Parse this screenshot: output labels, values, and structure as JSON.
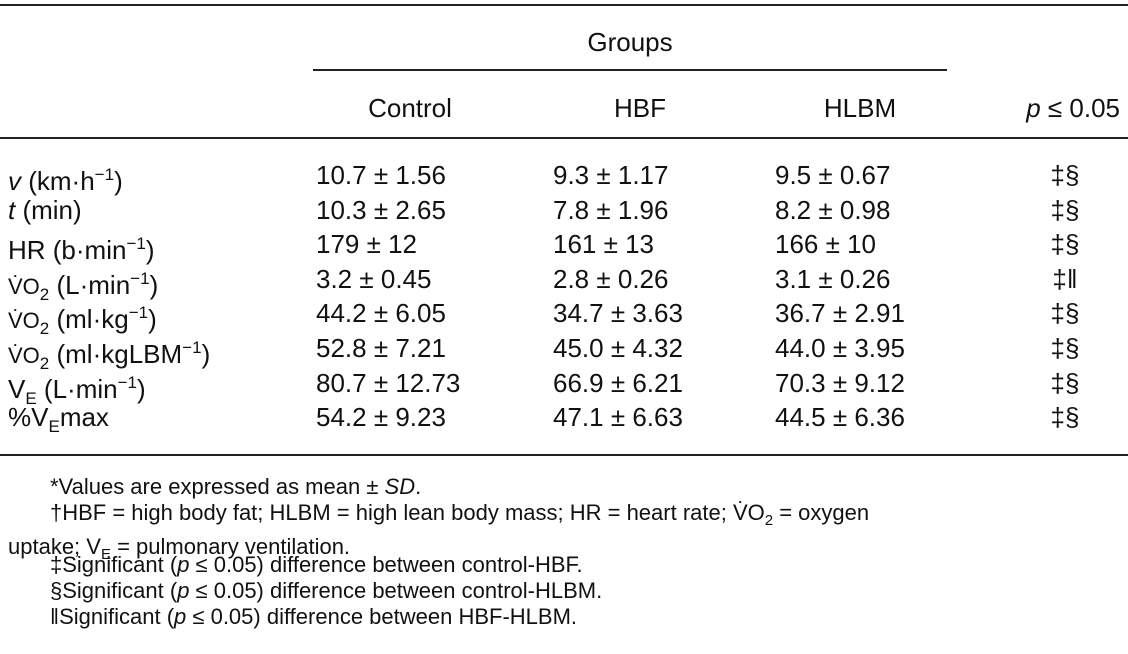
{
  "table": {
    "group_header": "Groups",
    "columns": [
      "Control",
      "HBF",
      "HLBM"
    ],
    "p_header": [
      "p",
      " ≤ 0.05"
    ],
    "rows": [
      {
        "label": [
          "v",
          " (km·h",
          "−1",
          ")"
        ],
        "cells": [
          "10.7 ± 1.56",
          "9.3 ± 1.17",
          "9.5 ± 0.67"
        ],
        "sig": "‡§"
      },
      {
        "label": [
          "t",
          " (min)"
        ],
        "cells": [
          "10.3 ± 2.65",
          "7.8 ± 1.96",
          "8.2 ± 0.98"
        ],
        "sig": "‡§"
      },
      {
        "label": [
          "HR (b·min",
          "−1",
          ")"
        ],
        "cells": [
          "179 ± 12",
          "161 ± 13",
          "166 ± 10"
        ],
        "sig": "‡§"
      },
      {
        "label": [
          "V̇O",
          "2",
          " (L·min",
          "−1",
          ")"
        ],
        "cells": [
          "3.2 ± 0.45",
          "2.8 ± 0.26",
          "3.1 ± 0.26"
        ],
        "sig": "‡‖"
      },
      {
        "label": [
          "V̇O",
          "2",
          " (ml·kg",
          "−1",
          ")"
        ],
        "cells": [
          "44.2 ± 6.05",
          "34.7 ± 3.63",
          "36.7 ± 2.91"
        ],
        "sig": "‡§"
      },
      {
        "label": [
          "V̇O",
          "2",
          " (ml·kgLBM",
          "−1",
          ")"
        ],
        "cells": [
          "52.8 ± 7.21",
          "45.0 ± 4.32",
          "44.0 ± 3.95"
        ],
        "sig": "‡§"
      },
      {
        "label": [
          "V",
          "E",
          " (L·min",
          "−1",
          ")"
        ],
        "cells": [
          "80.7 ± 12.73",
          "66.9 ± 6.21",
          "70.3 ± 9.12"
        ],
        "sig": "‡§"
      },
      {
        "label": [
          "%V",
          "E",
          "max"
        ],
        "cells": [
          "54.2 ± 9.23",
          "47.1 ± 6.63",
          "44.5 ± 6.36"
        ],
        "sig": "‡§"
      }
    ]
  },
  "footnotes": [
    [
      "*Values are expressed as mean ± ",
      "SD",
      "."
    ],
    [
      "†HBF = high body fat; HLBM = high lean body mass; HR = heart rate; V̇O",
      "2",
      " = oxygen",
      "uptake; V",
      "E",
      " = pulmonary ventilation."
    ],
    [
      "‡Significant (",
      "p",
      " ≤ 0.05) difference between control-HBF."
    ],
    [
      "§Significant (",
      "p",
      " ≤ 0.05) difference between control-HLBM."
    ],
    [
      "‖Significant (",
      "p",
      " ≤ 0.05) difference between HBF-HLBM."
    ]
  ]
}
